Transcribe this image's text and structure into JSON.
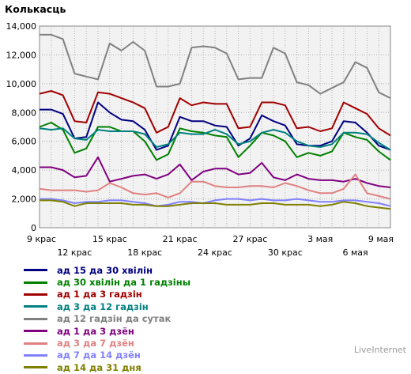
{
  "chart_data": {
    "type": "line",
    "title": "Колькасць",
    "ylim": [
      0,
      14000
    ],
    "yticks": [
      "0",
      "2,000",
      "4,000",
      "6,000",
      "8,000",
      "10,000",
      "12,000",
      "14,000"
    ],
    "yticks_values": [
      0,
      2000,
      4000,
      6000,
      8000,
      10000,
      12000,
      14000
    ],
    "xticks_top": [
      "9 крас",
      "15 крас",
      "21 крас",
      "27 крас",
      "3 мая",
      "9 мая"
    ],
    "xticks_top_index": [
      0,
      6,
      12,
      18,
      24,
      30
    ],
    "xticks_bottom": [
      "12 крас",
      "18 крас",
      "24 крас",
      "30 крас",
      "6 мая"
    ],
    "xticks_bottom_index": [
      3,
      9,
      15,
      21,
      27
    ],
    "x_count": 31,
    "grid": true,
    "legend_position": "bottom-left",
    "series": [
      {
        "name": "ад 15 да 30 хвілін",
        "color": "#000080",
        "values": [
          8200,
          8200,
          7900,
          6200,
          6300,
          8700,
          8000,
          7500,
          7400,
          6800,
          5400,
          5700,
          7700,
          7400,
          7400,
          7100,
          7000,
          5700,
          6200,
          7800,
          7400,
          7100,
          5800,
          5700,
          5700,
          6000,
          7400,
          7300,
          6600,
          5700,
          5400
        ]
      },
      {
        "name": "ад 30 хвілін да 1 гадзіны",
        "color": "#008000",
        "values": [
          7000,
          7300,
          6800,
          5200,
          5500,
          7000,
          7000,
          6700,
          6700,
          6000,
          4700,
          5100,
          6900,
          6700,
          6600,
          6400,
          6300,
          4900,
          5700,
          6600,
          6400,
          6000,
          4900,
          5200,
          5000,
          5300,
          6600,
          6300,
          6100,
          5300,
          4700
        ]
      },
      {
        "name": "ад 1 да 3 гадзін",
        "color": "#a00000",
        "values": [
          9300,
          9500,
          9200,
          7400,
          7300,
          9400,
          9300,
          9000,
          8700,
          8300,
          6600,
          7000,
          9000,
          8500,
          8700,
          8600,
          8600,
          6900,
          7000,
          8700,
          8700,
          8500,
          6900,
          7000,
          6700,
          6900,
          8700,
          8300,
          7900,
          6900,
          6400
        ]
      },
      {
        "name": "ад 3 да 12 гадзін",
        "color": "#008080",
        "values": [
          6900,
          6800,
          6900,
          6200,
          6100,
          6800,
          6700,
          6700,
          6700,
          6500,
          5600,
          5800,
          6600,
          6500,
          6500,
          6800,
          6500,
          5800,
          6000,
          6600,
          6800,
          6600,
          6000,
          5700,
          5600,
          5800,
          6600,
          6600,
          6500,
          5900,
          5400
        ]
      },
      {
        "name": "ад 12 гадзін да сутак",
        "color": "#808080",
        "values": [
          13400,
          13400,
          13100,
          10700,
          10500,
          10300,
          12800,
          12300,
          12900,
          12300,
          9800,
          9800,
          10000,
          12500,
          12600,
          12500,
          12100,
          10300,
          10400,
          10400,
          12500,
          12100,
          10100,
          9900,
          9300,
          9700,
          10100,
          11500,
          11100,
          9400,
          9000
        ]
      },
      {
        "name": "ад 1 да 3 дзён",
        "color": "#800080",
        "values": [
          4200,
          4200,
          4000,
          3500,
          3600,
          4900,
          3200,
          3400,
          3600,
          3700,
          3400,
          3700,
          4400,
          3300,
          3900,
          4100,
          4100,
          3700,
          3800,
          4500,
          3500,
          3300,
          3700,
          3400,
          3300,
          3300,
          3200,
          3400,
          3100,
          2900,
          2800
        ]
      },
      {
        "name": "ад 3 да 7 дзён",
        "color": "#e08080",
        "values": [
          2700,
          2600,
          2600,
          2600,
          2500,
          2600,
          3100,
          2800,
          2400,
          2300,
          2400,
          2100,
          2400,
          3200,
          3200,
          2900,
          2800,
          2800,
          2900,
          2900,
          2800,
          3100,
          2900,
          2600,
          2400,
          2400,
          2700,
          3700,
          2400,
          2200,
          2000
        ]
      },
      {
        "name": "ад 7 да 14 дзён",
        "color": "#8080ff",
        "values": [
          2000,
          2000,
          1900,
          1700,
          1800,
          1800,
          1900,
          1900,
          1800,
          1700,
          1500,
          1600,
          1800,
          1800,
          1700,
          1900,
          2000,
          2000,
          1900,
          2000,
          1900,
          1900,
          2000,
          1900,
          1800,
          1800,
          1900,
          1900,
          1800,
          1700,
          1500
        ]
      },
      {
        "name": "ад 14 да 31 дня",
        "color": "#808000",
        "values": [
          1900,
          1900,
          1800,
          1500,
          1700,
          1700,
          1700,
          1700,
          1600,
          1600,
          1500,
          1500,
          1600,
          1700,
          1700,
          1700,
          1600,
          1600,
          1600,
          1700,
          1700,
          1600,
          1600,
          1600,
          1500,
          1600,
          1800,
          1700,
          1500,
          1400,
          1300
        ]
      }
    ]
  },
  "footer": {
    "brand": "LiveInternet"
  }
}
